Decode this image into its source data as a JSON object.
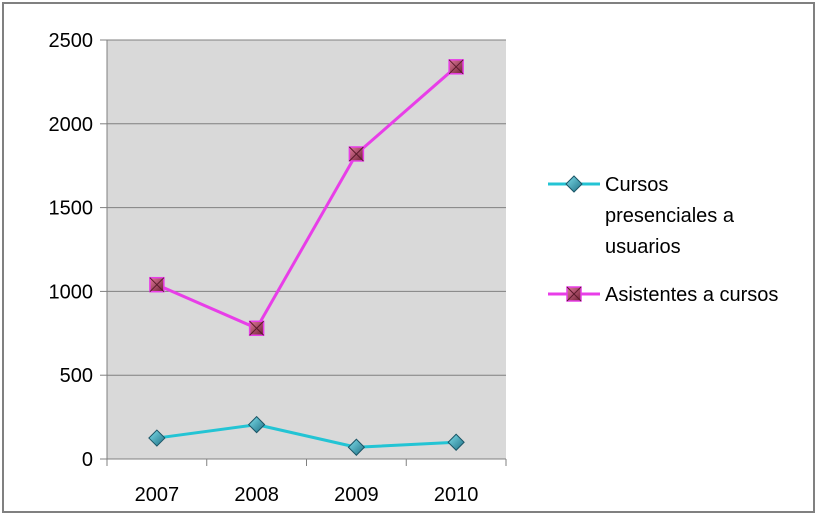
{
  "chart_data": {
    "type": "line",
    "title": "",
    "xlabel": "",
    "ylabel": "",
    "categories": [
      "2007",
      "2008",
      "2009",
      "2010"
    ],
    "ylim": [
      0,
      2500
    ],
    "yticks": [
      0,
      500,
      1000,
      1500,
      2000,
      2500
    ],
    "grid": true,
    "legend_position": "right",
    "plot_background": "#d9d9d9",
    "series": [
      {
        "name": "Cursos presenciales a usuarios",
        "legend_lines": [
          "Cursos",
          "presenciales a",
          "usuarios"
        ],
        "values": [
          125,
          205,
          70,
          100
        ],
        "color": "#23c4d4",
        "marker": "diamond",
        "marker_color": "#2a8aa0"
      },
      {
        "name": "Asistentes a cursos",
        "legend_lines": [
          "Asistentes a cursos"
        ],
        "values": [
          1040,
          780,
          1820,
          2340
        ],
        "color": "#e83ee8",
        "marker": "square",
        "marker_color": "#b04060"
      }
    ]
  }
}
